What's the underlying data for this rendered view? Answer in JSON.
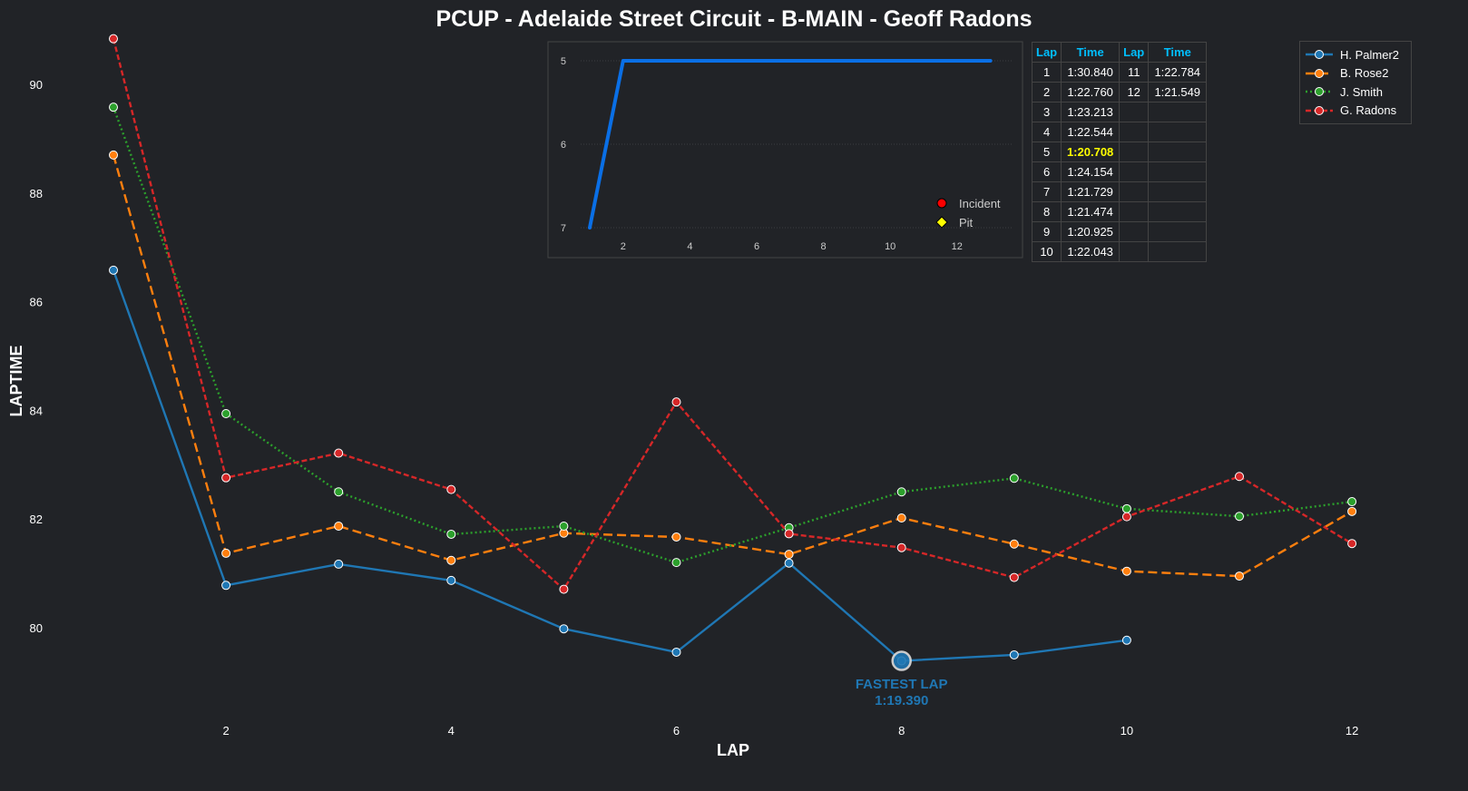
{
  "chart_data": {
    "type": "line",
    "title": "PCUP - Adelaide Street Circuit - B-MAIN - Geoff Radons",
    "xlabel": "LAP",
    "ylabel": "LAPTIME",
    "xlim": [
      1,
      12
    ],
    "ylim": [
      79,
      90.8
    ],
    "xticks": [
      2,
      4,
      6,
      8,
      10,
      12
    ],
    "yticks": [
      80,
      82,
      84,
      86,
      88,
      90
    ],
    "legend_placement": "top-right",
    "series": [
      {
        "name": "H. Palmer2",
        "color": "#1f77b4",
        "dash": "",
        "x": [
          1,
          2,
          3,
          4,
          5,
          6,
          7,
          8,
          9,
          10
        ],
        "values": [
          86.58,
          80.78,
          81.17,
          80.87,
          79.98,
          79.55,
          81.19,
          79.39,
          79.5,
          79.77
        ]
      },
      {
        "name": "B. Rose2",
        "color": "#ff7f0e",
        "dash": "10,5",
        "x": [
          1,
          2,
          3,
          4,
          5,
          6,
          7,
          8,
          9,
          10,
          11,
          12
        ],
        "values": [
          88.7,
          81.37,
          81.87,
          81.24,
          81.74,
          81.67,
          81.35,
          82.02,
          81.54,
          81.04,
          80.95,
          82.14
        ]
      },
      {
        "name": "J. Smith",
        "color": "#2ca02c",
        "dash": "2,3",
        "x": [
          1,
          2,
          3,
          4,
          5,
          6,
          7,
          8,
          9,
          10,
          11,
          12
        ],
        "values": [
          89.58,
          83.94,
          82.5,
          81.72,
          81.87,
          81.2,
          81.84,
          82.5,
          82.75,
          82.19,
          82.05,
          82.32
        ]
      },
      {
        "name": "G. Radons",
        "color": "#d62728",
        "dash": "6,3",
        "x": [
          1,
          2,
          3,
          4,
          5,
          6,
          7,
          8,
          9,
          10,
          11,
          12
        ],
        "values": [
          90.84,
          82.76,
          83.213,
          82.544,
          80.708,
          84.154,
          81.729,
          81.474,
          80.925,
          82.043,
          82.784,
          81.549
        ]
      }
    ],
    "annotation": {
      "label": "FASTEST LAP",
      "time": "1:19.390",
      "lap": 8,
      "value": 79.39
    },
    "inset": {
      "type": "line",
      "x": [
        1,
        2,
        3,
        4,
        5,
        6,
        7,
        8,
        9,
        10,
        11,
        12,
        13
      ],
      "values": [
        7,
        5,
        5,
        5,
        5,
        5,
        5,
        5,
        5,
        5,
        5,
        5,
        5
      ],
      "ylim": [
        7,
        5
      ],
      "xticks": [
        2,
        4,
        6,
        8,
        10,
        12
      ],
      "yticks": [
        5,
        6,
        7
      ],
      "color": "#0a6fe6",
      "legend": [
        {
          "label": "Incident",
          "color": "#ff0000",
          "marker": "circle"
        },
        {
          "label": "Pit",
          "color": "#ffff00",
          "marker": "diamond"
        }
      ]
    }
  },
  "table": {
    "headers": [
      "Lap",
      "Time",
      "Lap",
      "Time"
    ],
    "best_lap": 5,
    "rows": [
      [
        "1",
        "1:30.840",
        "11",
        "1:22.784"
      ],
      [
        "2",
        "1:22.760",
        "12",
        "1:21.549"
      ],
      [
        "3",
        "1:23.213",
        "",
        ""
      ],
      [
        "4",
        "1:22.544",
        "",
        ""
      ],
      [
        "5",
        "1:20.708",
        "",
        ""
      ],
      [
        "6",
        "1:24.154",
        "",
        ""
      ],
      [
        "7",
        "1:21.729",
        "",
        ""
      ],
      [
        "8",
        "1:21.474",
        "",
        ""
      ],
      [
        "9",
        "1:20.925",
        "",
        ""
      ],
      [
        "10",
        "1:22.043",
        "",
        ""
      ]
    ]
  }
}
